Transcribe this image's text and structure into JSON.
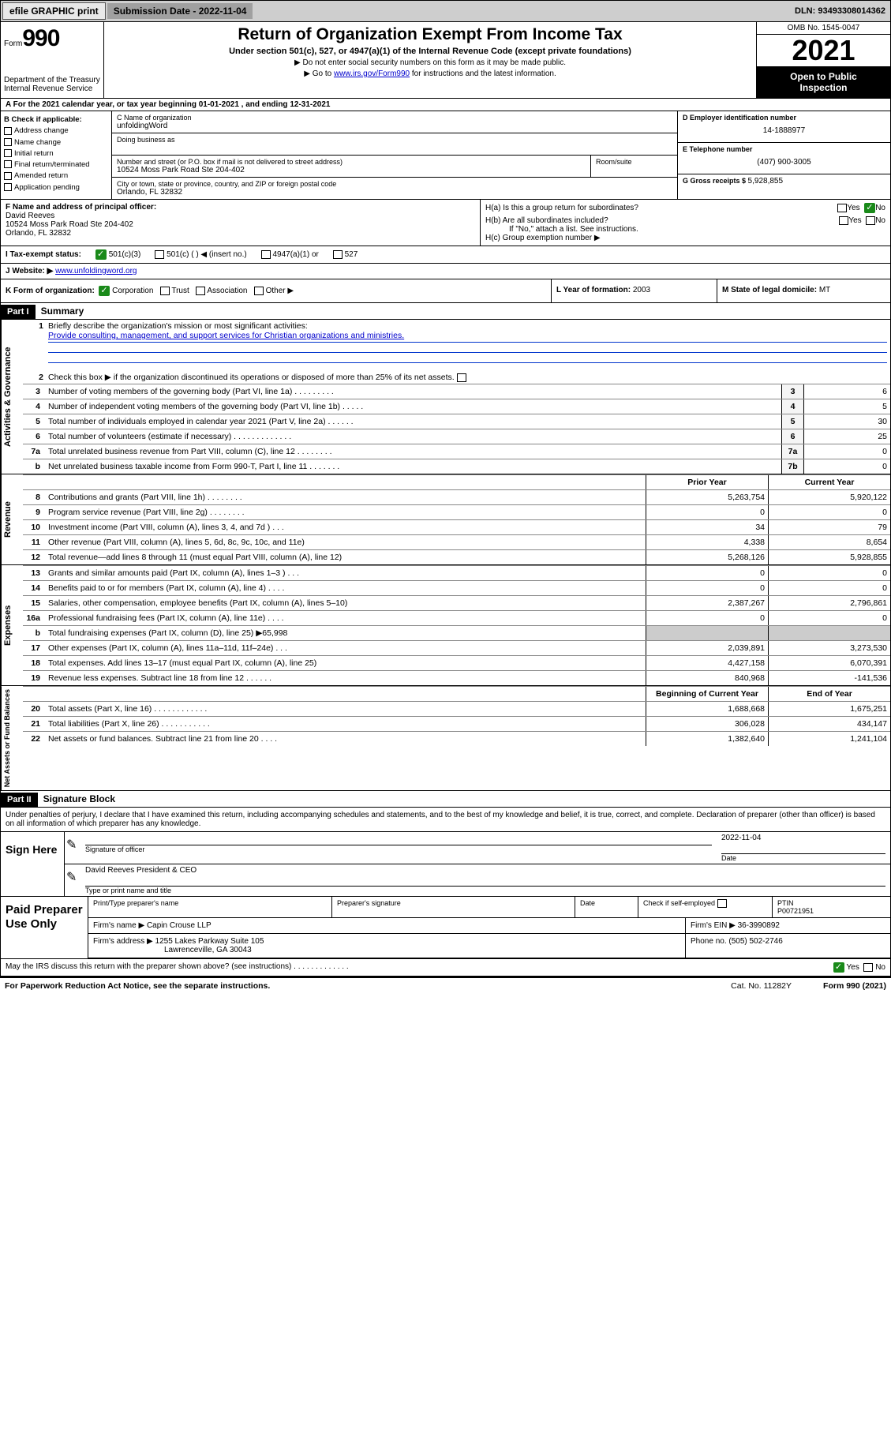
{
  "topbar": {
    "efile": "efile GRAPHIC print",
    "subdate_label": "Submission Date - ",
    "subdate": "2022-11-04",
    "dln_label": "DLN: ",
    "dln": "93493308014362"
  },
  "header": {
    "form_label": "Form",
    "form_num": "990",
    "dept": "Department of the Treasury",
    "irs": "Internal Revenue Service",
    "title": "Return of Organization Exempt From Income Tax",
    "sub": "Under section 501(c), 527, or 4947(a)(1) of the Internal Revenue Code (except private foundations)",
    "note1": "Do not enter social security numbers on this form as it may be made public.",
    "note2_pre": "Go to ",
    "note2_link": "www.irs.gov/Form990",
    "note2_post": " for instructions and the latest information.",
    "omb": "OMB No. 1545-0047",
    "year": "2021",
    "otp1": "Open to Public",
    "otp2": "Inspection"
  },
  "row_a": "A For the 2021 calendar year, or tax year beginning 01-01-2021   , and ending 12-31-2021",
  "col_b": {
    "label": "B Check if applicable:",
    "o1": "Address change",
    "o2": "Name change",
    "o3": "Initial return",
    "o4": "Final return/terminated",
    "o5": "Amended return",
    "o6": "Application pending"
  },
  "col_c": {
    "name_lbl": "C Name of organization",
    "name": "unfoldingWord",
    "dba_lbl": "Doing business as",
    "addr_lbl": "Number and street (or P.O. box if mail is not delivered to street address)",
    "suite_lbl": "Room/suite",
    "addr": "10524 Moss Park Road Ste 204-402",
    "city_lbl": "City or town, state or province, country, and ZIP or foreign postal code",
    "city": "Orlando, FL  32832"
  },
  "col_d": {
    "ein_lbl": "D Employer identification number",
    "ein": "14-1888977",
    "tel_lbl": "E Telephone number",
    "tel": "(407) 900-3005",
    "gross_lbl": "G Gross receipts $ ",
    "gross": "5,928,855"
  },
  "row_fh": {
    "f_lbl": "F Name and address of principal officer:",
    "f_name": "David Reeves",
    "f_addr1": "10524 Moss Park Road Ste 204-402",
    "f_addr2": "Orlando, FL  32832",
    "ha": "H(a)  Is this a group return for subordinates?",
    "hb": "H(b)  Are all subordinates included?",
    "hb_note": "If \"No,\" attach a list. See instructions.",
    "hc": "H(c)  Group exemption number ▶",
    "yes": "Yes",
    "no": "No"
  },
  "row_i": {
    "lbl": "I   Tax-exempt status:",
    "o1": "501(c)(3)",
    "o2": "501(c) (   ) ◀ (insert no.)",
    "o3": "4947(a)(1) or",
    "o4": "527"
  },
  "row_j": {
    "lbl": "J   Website: ▶ ",
    "link": "www.unfoldingword.org"
  },
  "row_k": {
    "k": "K Form of organization:",
    "k1": "Corporation",
    "k2": "Trust",
    "k3": "Association",
    "k4": "Other ▶",
    "l": "L Year of formation: ",
    "l_val": "2003",
    "m": "M State of legal domicile: ",
    "m_val": "MT"
  },
  "part1": {
    "hdr": "Part I",
    "title": "Summary"
  },
  "sect_gov": {
    "label": "Activities & Governance",
    "l1": "Briefly describe the organization's mission or most significant activities:",
    "l1_val": "Provide consulting, management, and support services for Christian organizations and ministries.",
    "l2": "Check this box ▶        if the organization discontinued its operations or disposed of more than 25% of its net assets.",
    "rows": [
      {
        "n": "3",
        "t": "Number of voting members of the governing body (Part VI, line 1a)   .   .   .   .   .   .   .   .   .",
        "b": "3",
        "v": "6"
      },
      {
        "n": "4",
        "t": "Number of independent voting members of the governing body (Part VI, line 1b)   .   .   .   .   .",
        "b": "4",
        "v": "5"
      },
      {
        "n": "5",
        "t": "Total number of individuals employed in calendar year 2021 (Part V, line 2a)   .   .   .   .   .   .",
        "b": "5",
        "v": "30"
      },
      {
        "n": "6",
        "t": "Total number of volunteers (estimate if necessary)   .   .   .   .   .   .   .   .   .   .   .   .   .",
        "b": "6",
        "v": "25"
      },
      {
        "n": "7a",
        "t": "Total unrelated business revenue from Part VIII, column (C), line 12   .   .   .   .   .   .   .   .",
        "b": "7a",
        "v": "0"
      },
      {
        "n": "b",
        "t": "Net unrelated business taxable income from Form 990-T, Part I, line 11   .   .   .   .   .   .   .",
        "b": "7b",
        "v": "0"
      }
    ]
  },
  "two_hdr": {
    "c1": "Prior Year",
    "c2": "Current Year"
  },
  "sect_rev": {
    "label": "Revenue",
    "rows": [
      {
        "n": "8",
        "t": "Contributions and grants (Part VIII, line 1h)   .   .   .   .   .   .   .   .",
        "c1": "5,263,754",
        "c2": "5,920,122"
      },
      {
        "n": "9",
        "t": "Program service revenue (Part VIII, line 2g)   .   .   .   .   .   .   .   .",
        "c1": "0",
        "c2": "0"
      },
      {
        "n": "10",
        "t": "Investment income (Part VIII, column (A), lines 3, 4, and 7d )   .   .   .",
        "c1": "34",
        "c2": "79"
      },
      {
        "n": "11",
        "t": "Other revenue (Part VIII, column (A), lines 5, 6d, 8c, 9c, 10c, and 11e)",
        "c1": "4,338",
        "c2": "8,654"
      },
      {
        "n": "12",
        "t": "Total revenue—add lines 8 through 11 (must equal Part VIII, column (A), line 12)",
        "c1": "5,268,126",
        "c2": "5,928,855"
      }
    ]
  },
  "sect_exp": {
    "label": "Expenses",
    "rows": [
      {
        "n": "13",
        "t": "Grants and similar amounts paid (Part IX, column (A), lines 1–3 )   .   .   .",
        "c1": "0",
        "c2": "0"
      },
      {
        "n": "14",
        "t": "Benefits paid to or for members (Part IX, column (A), line 4)   .   .   .   .",
        "c1": "0",
        "c2": "0"
      },
      {
        "n": "15",
        "t": "Salaries, other compensation, employee benefits (Part IX, column (A), lines 5–10)",
        "c1": "2,387,267",
        "c2": "2,796,861"
      },
      {
        "n": "16a",
        "t": "Professional fundraising fees (Part IX, column (A), line 11e)   .   .   .   .",
        "c1": "0",
        "c2": "0"
      },
      {
        "n": "b",
        "t": "Total fundraising expenses (Part IX, column (D), line 25) ▶65,998",
        "grey": true
      },
      {
        "n": "17",
        "t": "Other expenses (Part IX, column (A), lines 11a–11d, 11f–24e)   .   .   .",
        "c1": "2,039,891",
        "c2": "3,273,530"
      },
      {
        "n": "18",
        "t": "Total expenses. Add lines 13–17 (must equal Part IX, column (A), line 25)",
        "c1": "4,427,158",
        "c2": "6,070,391"
      },
      {
        "n": "19",
        "t": "Revenue less expenses. Subtract line 18 from line 12   .   .   .   .   .   .",
        "c1": "840,968",
        "c2": "-141,536"
      }
    ]
  },
  "sect_net": {
    "label": "Net Assets or Fund Balances",
    "hdr": {
      "c1": "Beginning of Current Year",
      "c2": "End of Year"
    },
    "rows": [
      {
        "n": "20",
        "t": "Total assets (Part X, line 16)   .   .   .   .   .   .   .   .   .   .   .   .",
        "c1": "1,688,668",
        "c2": "1,675,251"
      },
      {
        "n": "21",
        "t": "Total liabilities (Part X, line 26)   .   .   .   .   .   .   .   .   .   .   .",
        "c1": "306,028",
        "c2": "434,147"
      },
      {
        "n": "22",
        "t": "Net assets or fund balances. Subtract line 21 from line 20   .   .   .   .",
        "c1": "1,382,640",
        "c2": "1,241,104"
      }
    ]
  },
  "part2": {
    "hdr": "Part II",
    "title": "Signature Block"
  },
  "sig": {
    "note": "Under penalties of perjury, I declare that I have examined this return, including accompanying schedules and statements, and to the best of my knowledge and belief, it is true, correct, and complete. Declaration of preparer (other than officer) is based on all information of which preparer has any knowledge.",
    "sign_here": "Sign Here",
    "sig_of": "Signature of officer",
    "date_lbl": "Date",
    "date": "2022-11-04",
    "name": "David Reeves  President & CEO",
    "type_lbl": "Type or print name and title"
  },
  "prep": {
    "label": "Paid Preparer Use Only",
    "r1": {
      "c1": "Print/Type preparer's name",
      "c2": "Preparer's signature",
      "c3": "Date",
      "c4_lbl": "Check        if self-employed",
      "c5_lbl": "PTIN",
      "c5": "P00721951"
    },
    "r2": {
      "a": "Firm's name    ▶ ",
      "a_val": "Capin Crouse LLP",
      "b": "Firm's EIN ▶ ",
      "b_val": "36-3990892"
    },
    "r3": {
      "a": "Firm's address ▶ ",
      "a_val1": "1255 Lakes Parkway Suite 105",
      "a_val2": "Lawrenceville, GA  30043",
      "b": "Phone no. ",
      "b_val": "(505) 502-2746"
    }
  },
  "discuss": {
    "t": "May the IRS discuss this return with the preparer shown above? (see instructions)   .   .   .   .   .   .   .   .   .   .   .   .   .",
    "yes": "Yes",
    "no": "No"
  },
  "footer": {
    "l": "For Paperwork Reduction Act Notice, see the separate instructions.",
    "m": "Cat. No. 11282Y",
    "r": "Form 990 (2021)"
  }
}
